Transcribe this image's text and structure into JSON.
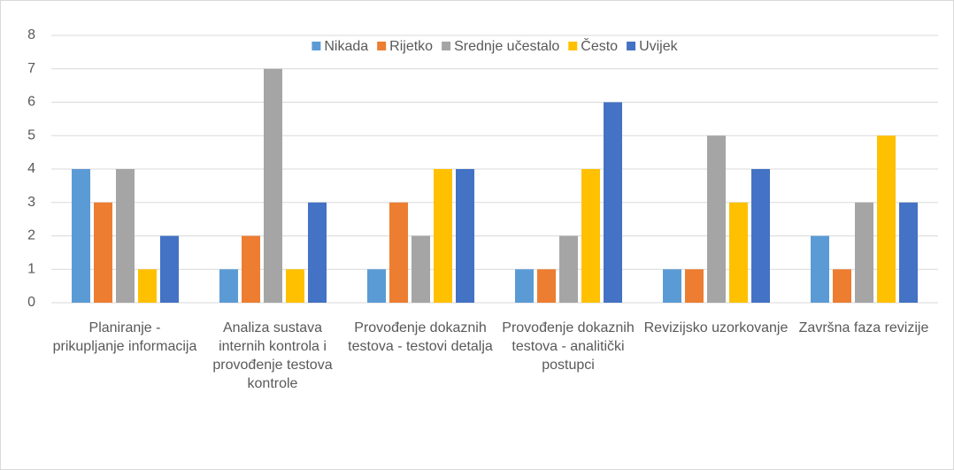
{
  "chart_data": {
    "type": "bar",
    "categories": [
      "Planiranje - prikupljanje informacija",
      "Analiza sustava internih kontrola i provođenje testova kontrole",
      "Provođenje dokaznih testova - testovi detalja",
      "Provođenje dokaznih testova - analitički postupci",
      "Revizijsko uzorkovanje",
      "Završna faza revizije"
    ],
    "series": [
      {
        "name": "Nikada",
        "color": "#5b9bd5",
        "values": [
          4,
          1,
          1,
          1,
          1,
          2
        ]
      },
      {
        "name": "Rijetko",
        "color": "#ed7d31",
        "values": [
          3,
          2,
          3,
          1,
          1,
          1
        ]
      },
      {
        "name": "Srednje učestalo",
        "color": "#a5a5a5",
        "values": [
          4,
          7,
          2,
          2,
          5,
          3
        ]
      },
      {
        "name": "Često",
        "color": "#ffc000",
        "values": [
          1,
          1,
          4,
          4,
          3,
          5
        ]
      },
      {
        "name": "Uvijek",
        "color": "#4472c4",
        "values": [
          2,
          3,
          4,
          6,
          4,
          3
        ]
      }
    ],
    "ylim": [
      0,
      8
    ],
    "yticks": [
      0,
      1,
      2,
      3,
      4,
      5,
      6,
      7,
      8
    ],
    "grid": true,
    "legend": "top"
  }
}
